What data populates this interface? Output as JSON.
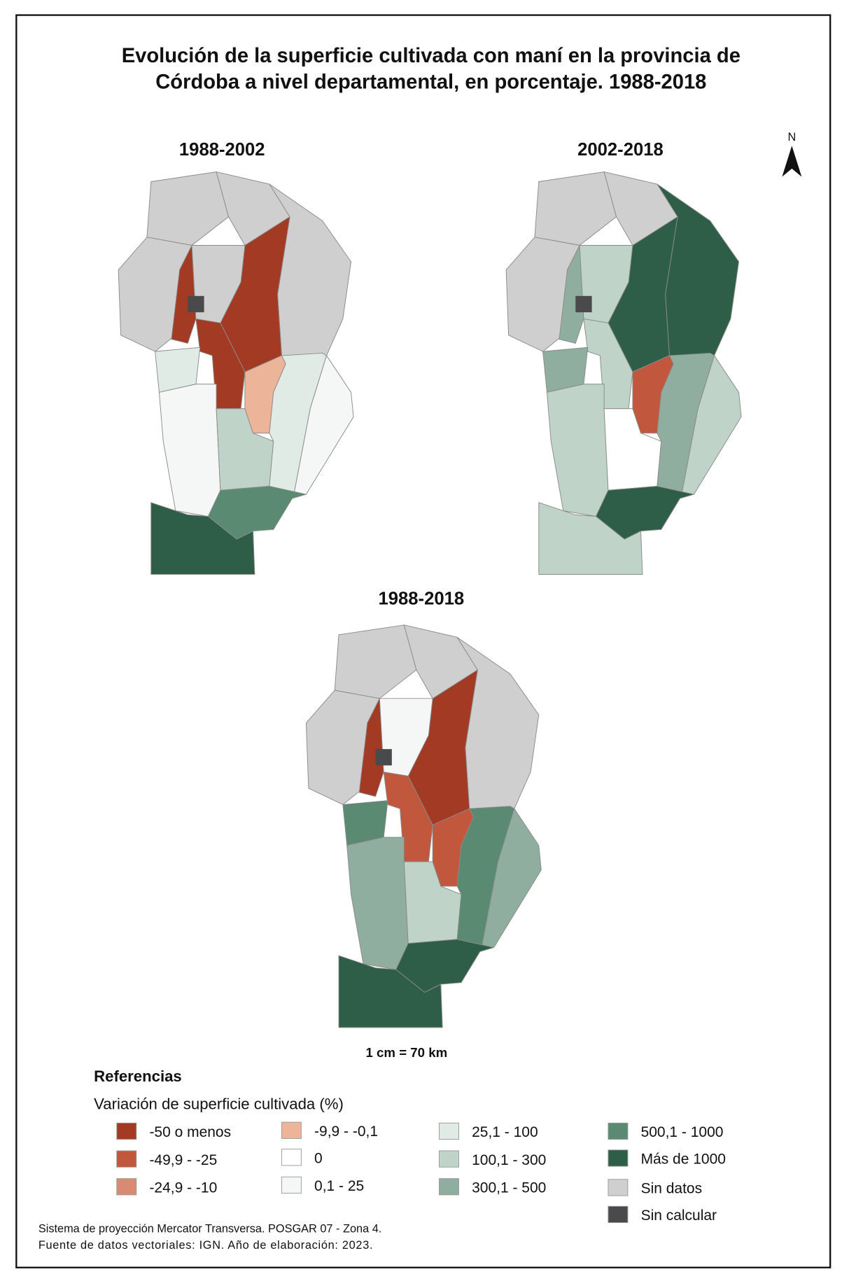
{
  "title": [
    "Evolución de la superficie cultivada con maní en la provincia de",
    "Córdoba a nivel departamental, en porcentaje. 1988-2018"
  ],
  "north": "N",
  "maps": [
    {
      "title": "1988-2002"
    },
    {
      "title": "2002-2018"
    },
    {
      "title": "1988-2018"
    }
  ],
  "scale": "1 cm = 70 km",
  "legend": {
    "heading": "Referencias",
    "title": "Variación de superficie cultivada (%)",
    "items": [
      {
        "label": "-50 o menos",
        "color": "#a33a23"
      },
      {
        "label": "-49,9 - -25",
        "color": "#c1583e"
      },
      {
        "label": "-24,9 - -10",
        "color": "#d98a72"
      },
      {
        "label": "-9,9 - -0,1",
        "color": "#ecb59a"
      },
      {
        "label": "0",
        "color": "#ffffff"
      },
      {
        "label": "0,1 - 25",
        "color": "#f4f7f5"
      },
      {
        "label": "25,1 - 100",
        "color": "#e0ebe5"
      },
      {
        "label": "100,1 - 300",
        "color": "#bfd3c8"
      },
      {
        "label": "300,1 - 500",
        "color": "#8fae9f"
      },
      {
        "label": "500,1 - 1000",
        "color": "#5b8a73"
      },
      {
        "label": "Más de 1000",
        "color": "#2f5e48"
      },
      {
        "label": "Sin datos",
        "color": "#cfcfd0"
      },
      {
        "label": "Sin calcular",
        "color": "#4a4a4c"
      }
    ]
  },
  "footer": [
    "Sistema de proyección Mercator Transversa. POSGAR 07 - Zona 4.",
    "Fuente de datos vectoriales: IGN. Año de elaboración: 2023."
  ]
}
